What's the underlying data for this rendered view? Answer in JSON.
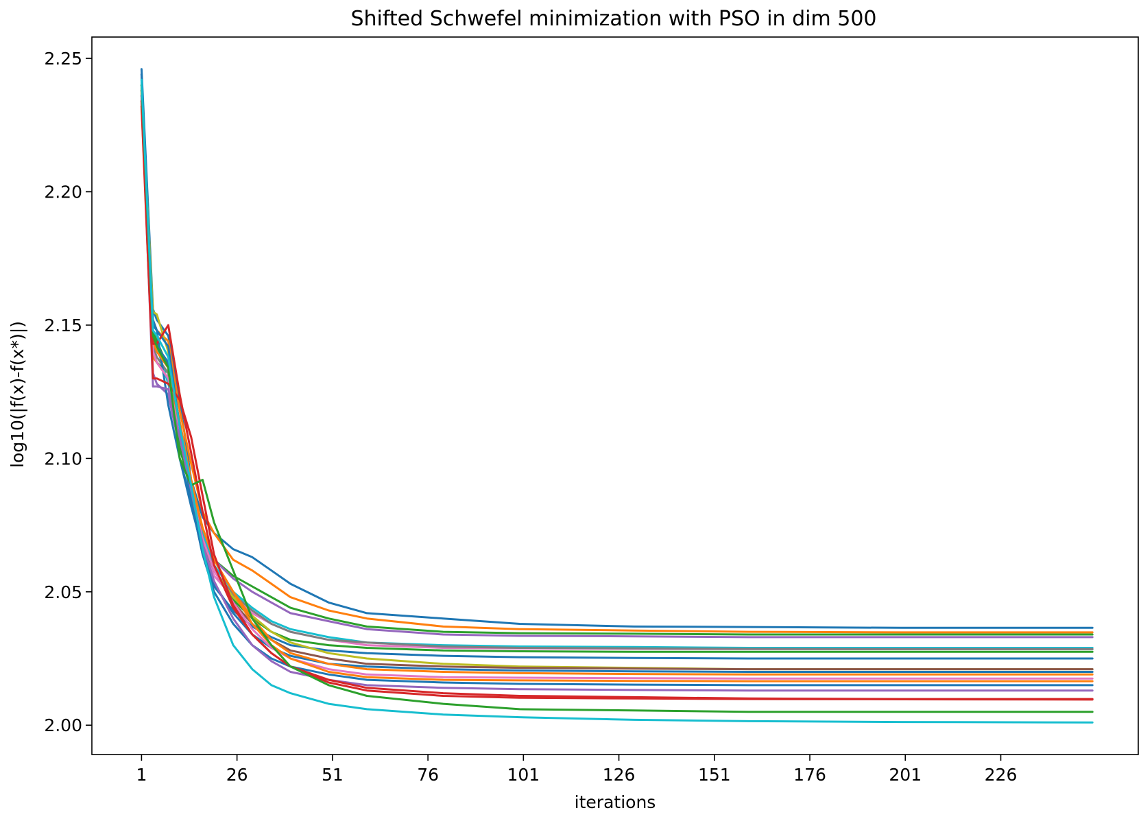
{
  "chart_data": {
    "type": "line",
    "title": "Shifted Schwefel minimization with PSO in dim 500",
    "xlabel": "iterations",
    "ylabel": "log10(|f(x)-f(x*)|)",
    "xlim": [
      -12,
      262
    ],
    "ylim": [
      1.989,
      2.258
    ],
    "xticks": [
      1,
      26,
      51,
      76,
      101,
      126,
      151,
      176,
      201,
      226
    ],
    "yticks": [
      2.0,
      2.05,
      2.1,
      2.15,
      2.2,
      2.25
    ],
    "ytick_labels": [
      "2.00",
      "2.05",
      "2.10",
      "2.15",
      "2.20",
      "2.25"
    ],
    "grid": false,
    "legend": "none",
    "palette": [
      "#1f77b4",
      "#ff7f0e",
      "#2ca02c",
      "#d62728",
      "#9467bd",
      "#8c564b",
      "#e377c2",
      "#7f7f7f",
      "#bcbd22",
      "#17becf"
    ],
    "series": [
      {
        "color": "#1f77b4",
        "x": [
          1,
          4,
          5,
          8,
          11,
          14,
          17,
          20,
          25,
          30,
          35,
          40,
          50,
          60,
          80,
          100,
          130,
          160,
          200,
          250
        ],
        "y": [
          2.246,
          2.156,
          2.152,
          2.146,
          2.122,
          2.092,
          2.078,
          2.072,
          2.066,
          2.063,
          2.058,
          2.053,
          2.046,
          2.042,
          2.04,
          2.038,
          2.037,
          2.0368,
          2.0365,
          2.0365
        ]
      },
      {
        "color": "#ff7f0e",
        "x": [
          1,
          4,
          5,
          8,
          11,
          14,
          17,
          20,
          25,
          30,
          35,
          40,
          50,
          60,
          80,
          100,
          130,
          160,
          200,
          250
        ],
        "y": [
          2.24,
          2.152,
          2.148,
          2.144,
          2.118,
          2.098,
          2.08,
          2.072,
          2.062,
          2.058,
          2.053,
          2.048,
          2.043,
          2.04,
          2.037,
          2.036,
          2.0355,
          2.035,
          2.0348,
          2.0348
        ]
      },
      {
        "color": "#2ca02c",
        "x": [
          1,
          4,
          5,
          8,
          11,
          14,
          17,
          20,
          25,
          30,
          35,
          40,
          50,
          60,
          80,
          100,
          130,
          160,
          200,
          250
        ],
        "y": [
          2.238,
          2.14,
          2.136,
          2.132,
          2.106,
          2.086,
          2.07,
          2.062,
          2.056,
          2.052,
          2.048,
          2.044,
          2.04,
          2.037,
          2.035,
          2.0345,
          2.0343,
          2.034,
          2.034,
          2.034
        ]
      },
      {
        "color": "#9467bd",
        "x": [
          1,
          4,
          5,
          8,
          11,
          14,
          17,
          20,
          25,
          30,
          35,
          40,
          50,
          60,
          80,
          100,
          130,
          160,
          200,
          250
        ],
        "y": [
          2.236,
          2.132,
          2.128,
          2.124,
          2.104,
          2.088,
          2.072,
          2.062,
          2.055,
          2.05,
          2.046,
          2.042,
          2.039,
          2.036,
          2.034,
          2.0335,
          2.0333,
          2.033,
          2.033,
          2.033
        ]
      },
      {
        "color": "#17becf",
        "x": [
          1,
          4,
          5,
          8,
          11,
          14,
          17,
          20,
          25,
          30,
          35,
          40,
          50,
          60,
          80,
          100,
          130,
          160,
          200,
          250
        ],
        "y": [
          2.242,
          2.146,
          2.142,
          2.128,
          2.11,
          2.09,
          2.072,
          2.06,
          2.05,
          2.044,
          2.039,
          2.036,
          2.033,
          2.031,
          2.03,
          2.0295,
          2.0293,
          2.029,
          2.029,
          2.029
        ]
      },
      {
        "color": "#e377c2",
        "x": [
          1,
          4,
          5,
          8,
          11,
          14,
          17,
          20,
          25,
          30,
          35,
          40,
          50,
          60,
          80,
          100,
          130,
          160,
          200,
          250
        ],
        "y": [
          2.234,
          2.14,
          2.136,
          2.13,
          2.108,
          2.088,
          2.068,
          2.056,
          2.048,
          2.042,
          2.038,
          2.035,
          2.032,
          2.03,
          2.029,
          2.0288,
          2.0286,
          2.0285,
          2.0285,
          2.0285
        ]
      },
      {
        "color": "#7f7f7f",
        "x": [
          1,
          4,
          5,
          8,
          11,
          14,
          17,
          20,
          25,
          30,
          35,
          40,
          50,
          60,
          80,
          100,
          130,
          160,
          200,
          250
        ],
        "y": [
          2.238,
          2.142,
          2.138,
          2.132,
          2.108,
          2.086,
          2.068,
          2.058,
          2.049,
          2.043,
          2.038,
          2.035,
          2.032,
          2.031,
          2.0295,
          2.029,
          2.0288,
          2.0286,
          2.0285,
          2.0285
        ]
      },
      {
        "color": "#2ca02c",
        "x": [
          1,
          4,
          5,
          8,
          11,
          14,
          17,
          20,
          25,
          30,
          35,
          40,
          50,
          60,
          80,
          100,
          130,
          160,
          200,
          250
        ],
        "y": [
          2.24,
          2.148,
          2.144,
          2.134,
          2.104,
          2.088,
          2.07,
          2.058,
          2.047,
          2.04,
          2.035,
          2.032,
          2.03,
          2.029,
          2.028,
          2.0277,
          2.0275,
          2.0275,
          2.0275,
          2.0275
        ]
      },
      {
        "color": "#1f77b4",
        "x": [
          1,
          4,
          5,
          8,
          11,
          14,
          17,
          20,
          25,
          30,
          35,
          40,
          50,
          60,
          80,
          100,
          130,
          160,
          200,
          250
        ],
        "y": [
          2.244,
          2.152,
          2.148,
          2.12,
          2.1,
          2.084,
          2.064,
          2.052,
          2.043,
          2.037,
          2.033,
          2.03,
          2.028,
          2.027,
          2.026,
          2.0255,
          2.0252,
          2.025,
          2.025,
          2.025
        ]
      },
      {
        "color": "#bcbd22",
        "x": [
          1,
          4,
          5,
          8,
          11,
          14,
          17,
          20,
          25,
          30,
          35,
          40,
          50,
          60,
          80,
          100,
          130,
          160,
          200,
          250
        ],
        "y": [
          2.238,
          2.155,
          2.154,
          2.14,
          2.112,
          2.09,
          2.07,
          2.058,
          2.048,
          2.041,
          2.035,
          2.031,
          2.027,
          2.025,
          2.023,
          2.022,
          2.0215,
          2.021,
          2.021,
          2.021
        ]
      },
      {
        "color": "#8c564b",
        "x": [
          1,
          4,
          5,
          8,
          11,
          14,
          17,
          20,
          25,
          30,
          35,
          40,
          50,
          60,
          80,
          100,
          130,
          160,
          200,
          250
        ],
        "y": [
          2.236,
          2.146,
          2.142,
          2.136,
          2.11,
          2.09,
          2.07,
          2.058,
          2.046,
          2.038,
          2.032,
          2.028,
          2.025,
          2.023,
          2.022,
          2.0215,
          2.0212,
          2.021,
          2.021,
          2.021
        ]
      },
      {
        "color": "#1f77b4",
        "x": [
          1,
          4,
          5,
          8,
          11,
          14,
          17,
          20,
          25,
          30,
          35,
          40,
          50,
          60,
          80,
          100,
          130,
          160,
          200,
          250
        ],
        "y": [
          2.244,
          2.146,
          2.142,
          2.136,
          2.1,
          2.082,
          2.066,
          2.053,
          2.042,
          2.034,
          2.029,
          2.026,
          2.023,
          2.022,
          2.021,
          2.0205,
          2.0202,
          2.02,
          2.02,
          2.02
        ]
      },
      {
        "color": "#ff7f0e",
        "x": [
          1,
          4,
          5,
          8,
          11,
          14,
          17,
          20,
          25,
          30,
          35,
          40,
          50,
          60,
          80,
          100,
          130,
          160,
          200,
          250
        ],
        "y": [
          2.232,
          2.138,
          2.136,
          2.13,
          2.11,
          2.09,
          2.074,
          2.062,
          2.05,
          2.04,
          2.032,
          2.027,
          2.023,
          2.021,
          2.02,
          2.0195,
          2.0192,
          2.019,
          2.019,
          2.019
        ]
      },
      {
        "color": "#e377c2",
        "x": [
          1,
          4,
          5,
          8,
          11,
          14,
          17,
          20,
          25,
          30,
          35,
          40,
          50,
          60,
          80,
          100,
          130,
          160,
          200,
          250
        ],
        "y": [
          2.234,
          2.14,
          2.136,
          2.13,
          2.108,
          2.088,
          2.07,
          2.058,
          2.046,
          2.036,
          2.029,
          2.025,
          2.021,
          2.019,
          2.018,
          2.0178,
          2.0176,
          2.0175,
          2.0175,
          2.0175
        ]
      },
      {
        "color": "#ff7f0e",
        "x": [
          1,
          4,
          5,
          8,
          11,
          14,
          17,
          20,
          25,
          30,
          35,
          40,
          50,
          60,
          80,
          100,
          130,
          160,
          200,
          250
        ],
        "y": [
          2.238,
          2.144,
          2.14,
          2.134,
          2.114,
          2.092,
          2.074,
          2.062,
          2.05,
          2.038,
          2.03,
          2.025,
          2.02,
          2.018,
          2.017,
          2.0168,
          2.0166,
          2.0165,
          2.0165,
          2.0165
        ]
      },
      {
        "color": "#1f77b4",
        "x": [
          1,
          4,
          5,
          8,
          11,
          14,
          17,
          20,
          25,
          30,
          35,
          40,
          50,
          60,
          80,
          100,
          130,
          160,
          200,
          250
        ],
        "y": [
          2.24,
          2.15,
          2.148,
          2.142,
          2.112,
          2.084,
          2.064,
          2.05,
          2.038,
          2.03,
          2.025,
          2.022,
          2.019,
          2.017,
          2.016,
          2.0155,
          2.0152,
          2.015,
          2.015,
          2.015
        ]
      },
      {
        "color": "#9467bd",
        "x": [
          1,
          4,
          5,
          8,
          11,
          14,
          17,
          20,
          25,
          30,
          35,
          40,
          50,
          60,
          80,
          100,
          130,
          160,
          200,
          250
        ],
        "y": [
          2.236,
          2.127,
          2.127,
          2.126,
          2.108,
          2.088,
          2.068,
          2.054,
          2.04,
          2.03,
          2.024,
          2.02,
          2.017,
          2.015,
          2.014,
          2.0135,
          2.0132,
          2.013,
          2.013,
          2.013
        ]
      },
      {
        "color": "#d62728",
        "x": [
          1,
          4,
          5,
          8,
          11,
          14,
          17,
          20,
          25,
          30,
          35,
          40,
          50,
          60,
          80,
          100,
          130,
          160,
          200,
          250
        ],
        "y": [
          2.232,
          2.13,
          2.13,
          2.128,
          2.122,
          2.108,
          2.086,
          2.064,
          2.045,
          2.034,
          2.027,
          2.022,
          2.017,
          2.014,
          2.012,
          2.011,
          2.0105,
          2.01,
          2.0098,
          2.0098
        ]
      },
      {
        "color": "#d62728",
        "x": [
          1,
          4,
          5,
          8,
          11,
          14,
          17,
          20,
          25,
          30,
          35,
          40,
          50,
          60,
          80,
          100,
          130,
          160,
          200,
          250
        ],
        "y": [
          2.234,
          2.143,
          2.143,
          2.15,
          2.124,
          2.102,
          2.08,
          2.06,
          2.044,
          2.034,
          2.027,
          2.022,
          2.016,
          2.013,
          2.011,
          2.0103,
          2.01,
          2.0098,
          2.0097,
          2.0096
        ]
      },
      {
        "color": "#2ca02c",
        "x": [
          1,
          4,
          5,
          8,
          11,
          14,
          17,
          20,
          25,
          30,
          35,
          40,
          50,
          60,
          80,
          100,
          130,
          160,
          200,
          250
        ],
        "y": [
          2.24,
          2.146,
          2.142,
          2.134,
          2.1,
          2.09,
          2.092,
          2.076,
          2.058,
          2.04,
          2.03,
          2.022,
          2.015,
          2.011,
          2.008,
          2.006,
          2.0055,
          2.005,
          2.005,
          2.005
        ]
      },
      {
        "color": "#17becf",
        "x": [
          1,
          4,
          5,
          8,
          11,
          14,
          17,
          20,
          25,
          30,
          35,
          40,
          50,
          60,
          80,
          100,
          130,
          160,
          200,
          250
        ],
        "y": [
          2.242,
          2.148,
          2.146,
          2.138,
          2.112,
          2.09,
          2.066,
          2.048,
          2.03,
          2.021,
          2.015,
          2.012,
          2.008,
          2.006,
          2.004,
          2.003,
          2.002,
          2.0015,
          2.0012,
          2.001
        ]
      }
    ]
  }
}
